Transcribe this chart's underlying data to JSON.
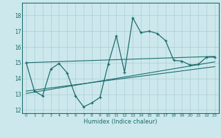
{
  "title": "",
  "xlabel": "Humidex (Indice chaleur)",
  "bg_color": "#cce8ec",
  "grid_color": "#aacdd4",
  "line_color": "#1a6b6b",
  "xlim": [
    -0.5,
    23.5
  ],
  "ylim": [
    11.8,
    18.8
  ],
  "yticks": [
    12,
    13,
    14,
    15,
    16,
    17,
    18
  ],
  "xticks": [
    0,
    1,
    2,
    3,
    4,
    5,
    6,
    7,
    8,
    9,
    10,
    11,
    12,
    13,
    14,
    15,
    16,
    17,
    18,
    19,
    20,
    21,
    22,
    23
  ],
  "main_line_x": [
    0,
    1,
    2,
    3,
    4,
    5,
    6,
    7,
    8,
    9,
    10,
    11,
    12,
    13,
    14,
    15,
    16,
    17,
    18,
    19,
    20,
    21,
    22,
    23
  ],
  "main_line_y": [
    15.0,
    13.2,
    12.9,
    14.6,
    14.95,
    14.35,
    12.9,
    12.2,
    12.45,
    12.8,
    14.9,
    16.7,
    14.4,
    17.85,
    16.9,
    17.0,
    16.85,
    16.4,
    15.15,
    15.1,
    14.85,
    14.9,
    15.35,
    15.35
  ],
  "upper_line_x": [
    0,
    23
  ],
  "upper_line_y": [
    15.0,
    15.4
  ],
  "lower_line_x": [
    0,
    23
  ],
  "lower_line_y": [
    13.05,
    15.05
  ],
  "mid_line_x": [
    0,
    23
  ],
  "mid_line_y": [
    13.2,
    14.75
  ]
}
